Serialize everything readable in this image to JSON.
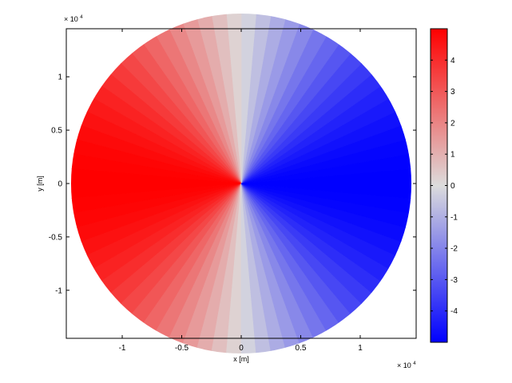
{
  "chart_data": {
    "type": "heatmap",
    "title": "",
    "xlabel": "x [m]",
    "ylabel": "y [m]",
    "x_scale_note": {
      "base": "× 10",
      "exponent": "4"
    },
    "y_scale_note": {
      "base": "× 10",
      "exponent": "4"
    },
    "xlim": [
      -1.47,
      1.47
    ],
    "ylim": [
      -1.45,
      1.45
    ],
    "x_ticks": [
      {
        "value": -1,
        "label": "-1"
      },
      {
        "value": -0.5,
        "label": "-0.5"
      },
      {
        "value": 0,
        "label": "0"
      },
      {
        "value": 0.5,
        "label": "0.5"
      },
      {
        "value": 1,
        "label": "1"
      }
    ],
    "y_ticks": [
      {
        "value": 1,
        "label": "1"
      },
      {
        "value": 0.5,
        "label": "0.5"
      },
      {
        "value": 0,
        "label": "0"
      },
      {
        "value": -0.5,
        "label": "-0.5"
      },
      {
        "value": -1,
        "label": "-1"
      }
    ],
    "domain_shape": "disk",
    "domain_radius": 1.43,
    "field_description": "value varies with polar angle: approx +5 along negative x-axis, 0 along y-axis, approx -5 along positive x-axis",
    "colorbar": {
      "range": [
        -5,
        5
      ],
      "colormap": [
        "#0000ff",
        "#dcdcdc",
        "#ff0000"
      ],
      "ticks": [
        {
          "value": 4,
          "label": "4"
        },
        {
          "value": 3,
          "label": "3"
        },
        {
          "value": 2,
          "label": "2"
        },
        {
          "value": 1,
          "label": "1"
        },
        {
          "value": 0,
          "label": "0"
        },
        {
          "value": -1,
          "label": "-1"
        },
        {
          "value": -2,
          "label": "-2"
        },
        {
          "value": -3,
          "label": "-3"
        },
        {
          "value": -4,
          "label": "-4"
        }
      ]
    },
    "grid": false,
    "colors": {
      "max": "#ff0000",
      "mid": "#dcdcdc",
      "min": "#0000ff"
    }
  }
}
